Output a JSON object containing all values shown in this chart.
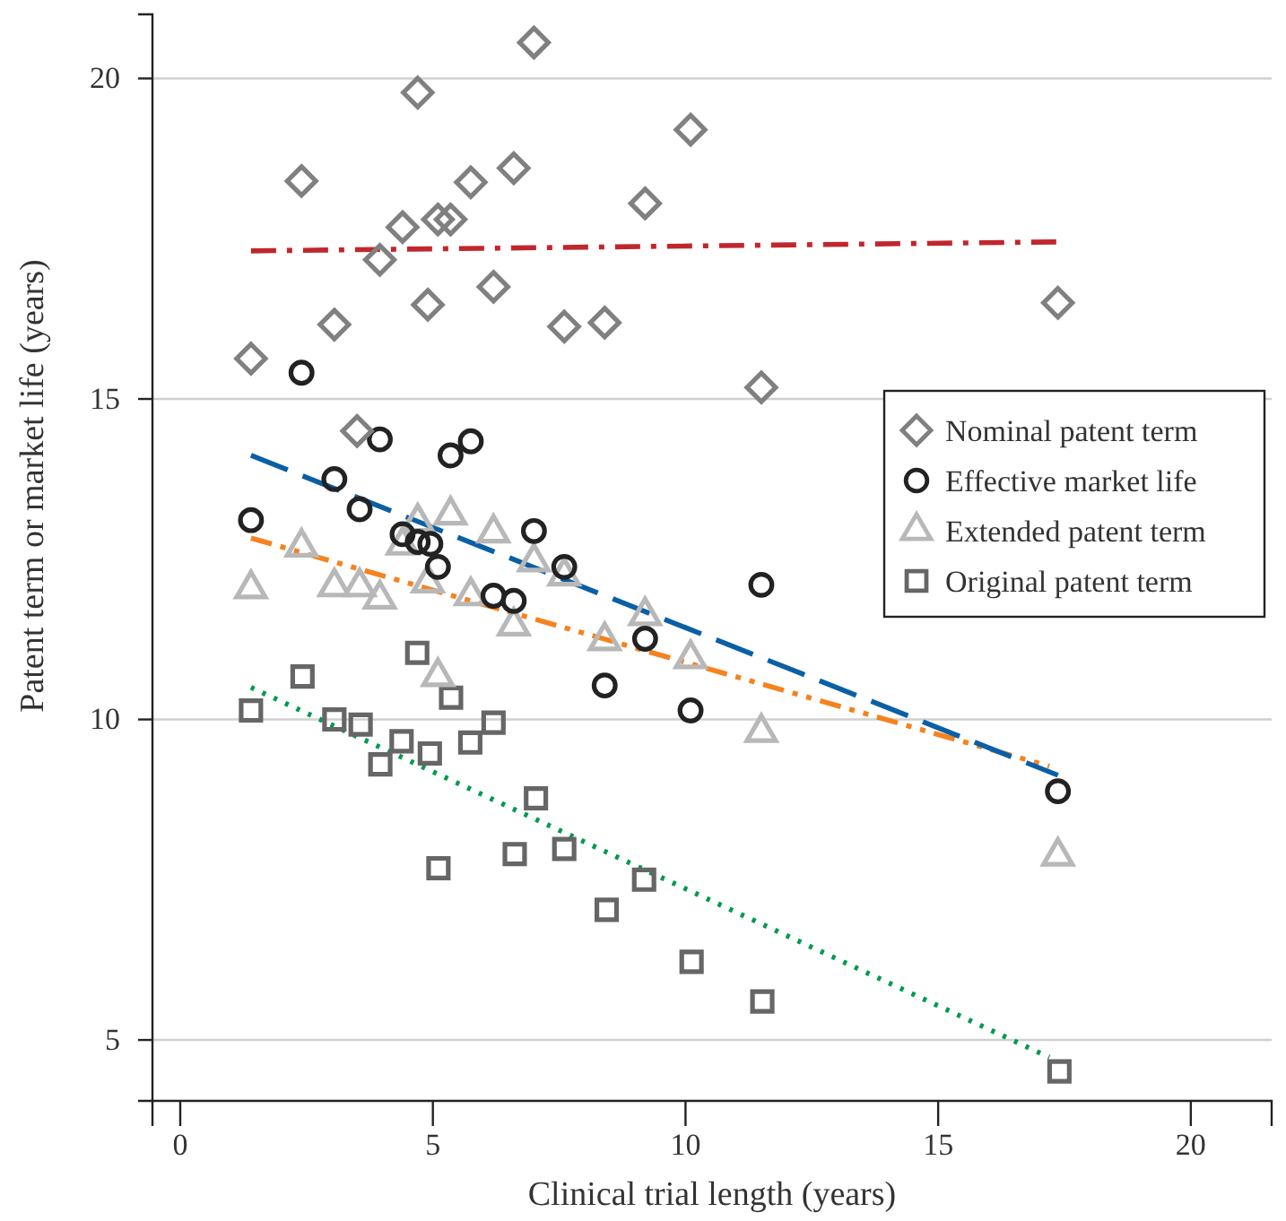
{
  "chart_data": {
    "type": "scatter",
    "xlabel": "Clinical trial length (years)",
    "ylabel": "Patent term or market life (years)",
    "xlim": [
      -0.55,
      21.6
    ],
    "xticks": [
      0,
      5,
      10,
      15,
      20
    ],
    "ylim": [
      4.05,
      21
    ],
    "yticks": [
      5,
      10,
      15,
      20
    ],
    "grid": "y",
    "legend": "top right",
    "series": [
      {
        "name": "Nominal patent term",
        "marker": "diamond",
        "color": "#808080",
        "x": [
          1.4,
          2.4,
          3.05,
          3.5,
          3.95,
          4.4,
          4.7,
          4.9,
          5.1,
          5.35,
          5.75,
          6.2,
          6.6,
          7.0,
          7.6,
          8.4,
          9.2,
          10.1,
          11.5,
          17.37
        ],
        "values": [
          15.63,
          18.4,
          16.16,
          14.5,
          17.17,
          17.68,
          19.78,
          16.47,
          17.8,
          17.8,
          18.38,
          16.75,
          18.6,
          20.56,
          16.13,
          16.19,
          18.05,
          19.2,
          15.18,
          16.5
        ]
      },
      {
        "name": "Effective market life",
        "marker": "circle",
        "color": "#222222",
        "x": [
          1.4,
          2.4,
          3.05,
          3.55,
          3.95,
          4.4,
          4.7,
          4.95,
          5.1,
          5.35,
          5.75,
          6.2,
          6.6,
          7.0,
          7.6,
          8.4,
          9.2,
          10.1,
          11.5,
          17.37
        ],
        "values": [
          13.11,
          15.41,
          13.75,
          13.28,
          14.37,
          12.89,
          12.77,
          12.74,
          12.38,
          14.12,
          14.34,
          11.93,
          11.85,
          12.94,
          12.38,
          10.53,
          11.26,
          10.14,
          12.1,
          8.88
        ]
      },
      {
        "name": "Extended patent term",
        "marker": "triangle",
        "color": "#b8b8b8",
        "x": [
          1.4,
          2.4,
          3.05,
          3.55,
          3.95,
          4.4,
          4.7,
          4.9,
          5.1,
          5.35,
          5.75,
          6.2,
          6.6,
          7.0,
          7.6,
          8.4,
          9.2,
          10.1,
          11.5,
          17.37
        ],
        "values": [
          12.04,
          12.69,
          12.07,
          12.07,
          11.88,
          12.72,
          13.08,
          12.13,
          10.67,
          13.19,
          11.93,
          12.91,
          11.46,
          12.46,
          12.24,
          11.23,
          11.62,
          10.95,
          9.8,
          7.87
        ]
      },
      {
        "name": "Original patent term",
        "marker": "square",
        "color": "#666666",
        "x": [
          1.4,
          2.42,
          3.05,
          3.57,
          3.96,
          4.38,
          4.69,
          4.94,
          5.11,
          5.36,
          5.74,
          6.2,
          6.62,
          7.04,
          7.6,
          8.44,
          9.18,
          10.12,
          11.52,
          17.4
        ],
        "values": [
          10.14,
          10.67,
          10.0,
          9.92,
          9.3,
          9.66,
          11.04,
          9.47,
          7.68,
          10.34,
          9.64,
          9.95,
          7.9,
          8.77,
          7.98,
          7.03,
          7.5,
          6.22,
          5.6,
          4.51
        ]
      },
      {
        "type": "line",
        "line_style": "dashdot",
        "color": "#c0272d",
        "x": [
          1.4,
          17.37
        ],
        "values": [
          17.31,
          17.45
        ]
      },
      {
        "type": "line",
        "line_style": "dashed",
        "color": "#0a5fa5",
        "x": [
          1.4,
          17.37
        ],
        "values": [
          14.12,
          9.13
        ]
      },
      {
        "type": "line",
        "line_style": "dashdotdot",
        "color": "#f5821f",
        "x": [
          1.4,
          17.2
        ],
        "values": [
          12.83,
          9.27
        ]
      },
      {
        "type": "line",
        "line_style": "dotted",
        "color": "#009a4c",
        "x": [
          1.4,
          17.2
        ],
        "values": [
          10.5,
          4.73
        ]
      }
    ]
  }
}
